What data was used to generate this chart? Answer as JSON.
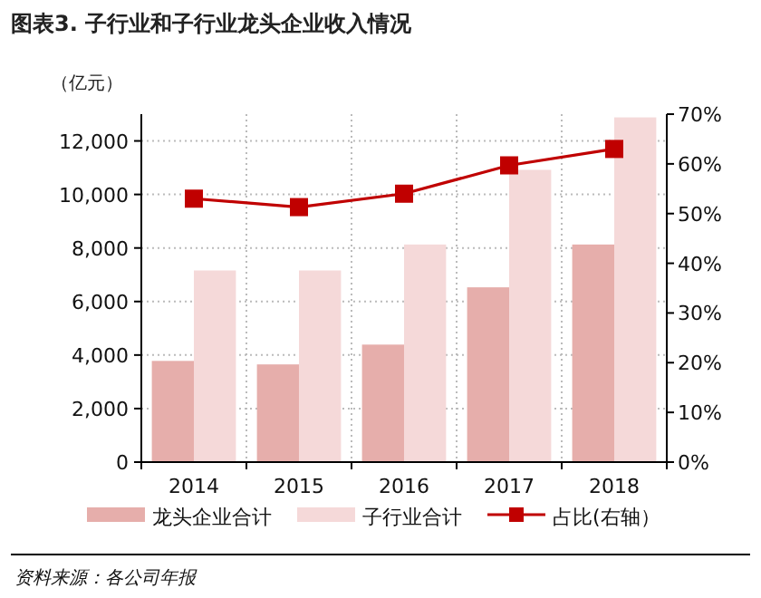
{
  "chart_data": {
    "type": "bar",
    "title": "图表3. 子行业和子行业龙头企业收入情况",
    "ylabel": "（亿元）",
    "categories": [
      "2014",
      "2015",
      "2016",
      "2017",
      "2018"
    ],
    "series": [
      {
        "name": "龙头企业合计",
        "color": "#e6aeab",
        "values": [
          3780,
          3650,
          4390,
          6530,
          8130
        ]
      },
      {
        "name": "子行业合计",
        "color": "#f5d9d9",
        "values": [
          7160,
          7160,
          8130,
          10920,
          12880
        ]
      },
      {
        "name": "占比(右轴）",
        "type": "line",
        "axis": "y2",
        "color": "#c00000",
        "marker": "square",
        "values": [
          53.0,
          51.3,
          54.0,
          59.7,
          63.0
        ]
      }
    ],
    "ylim": [
      0,
      13000
    ],
    "yticks": [
      0,
      {
        "value": 2000,
        "label": "2,000"
      },
      {
        "value": 4000,
        "label": "4,000"
      },
      {
        "value": 6000,
        "label": "6,000"
      },
      {
        "value": 8000,
        "label": "8,000"
      },
      {
        "value": 10000,
        "label": "10,000"
      },
      {
        "value": 12000,
        "label": "12,000"
      }
    ],
    "y2lim": [
      0,
      70
    ],
    "y2ticks": [
      {
        "value": 0,
        "label": "0%"
      },
      {
        "value": 10,
        "label": "10%"
      },
      {
        "value": 20,
        "label": "20%"
      },
      {
        "value": 30,
        "label": "30%"
      },
      {
        "value": 40,
        "label": "40%"
      },
      {
        "value": 50,
        "label": "50%"
      },
      {
        "value": 60,
        "label": "60%"
      },
      {
        "value": 70,
        "label": "70%"
      }
    ],
    "grid": true,
    "legend": "bottom",
    "annotations": [
      "资料来源：各公司年报"
    ]
  }
}
